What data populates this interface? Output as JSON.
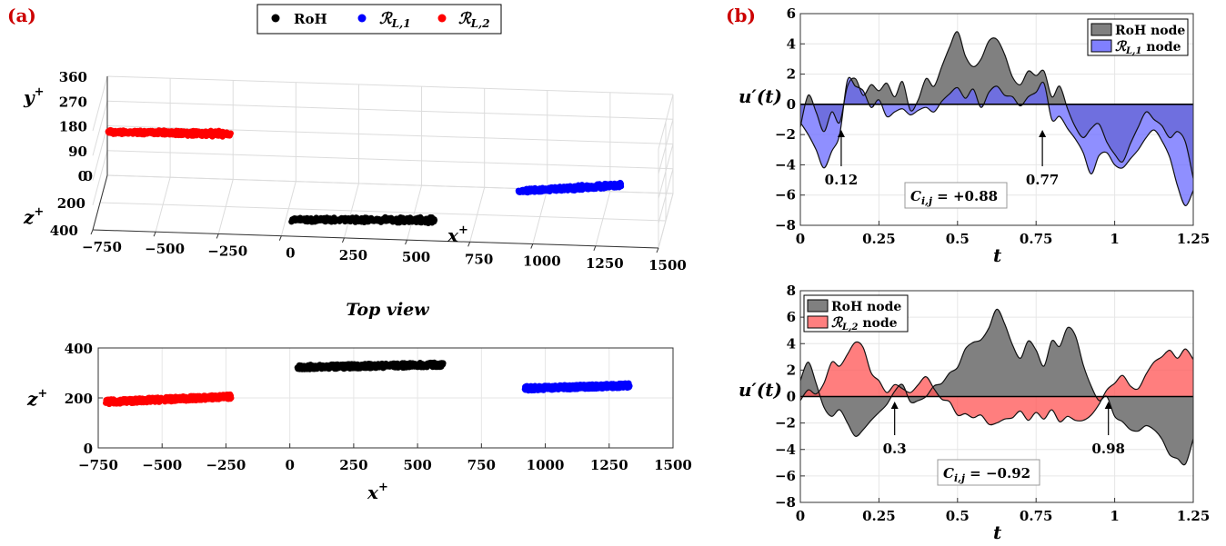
{
  "panel_labels": {
    "a": "(a)",
    "b": "(b)"
  },
  "colors": {
    "roh": "#000000",
    "rl1": "#0000ff",
    "rl2": "#ff0000",
    "roh_fill": "#808080",
    "rl1_fill": "#8080ff",
    "rl2_fill": "#ff7f7f",
    "overlap_blue": "#3535c0",
    "overlap_red": "#c04040"
  },
  "legend_top": {
    "items": [
      {
        "label": "RoH",
        "color": "#000000"
      },
      {
        "label": "ℛ",
        "sub": "L,1",
        "color": "#0000ff"
      },
      {
        "label": "ℛ",
        "sub": "L,2",
        "color": "#ff0000"
      }
    ]
  },
  "chart_data": [
    {
      "id": "3d-view",
      "type": "scatter",
      "title": "",
      "xlabel": "x",
      "xlabel_sup": "+",
      "ylabel": "y",
      "ylabel_sup": "+",
      "zlabel": "z",
      "zlabel_sup": "+",
      "x_ticks": [
        "−750",
        "−500",
        "−250",
        "0",
        "250",
        "500",
        "750",
        "1000",
        "1250",
        "1500"
      ],
      "y_ticks": [
        "0",
        "90",
        "180",
        "270",
        "360"
      ],
      "z_ticks": [
        "0",
        "200",
        "400"
      ],
      "xlim": [
        -750,
        1500
      ],
      "series": [
        {
          "name": "RoH",
          "color": "#000000",
          "x": [
            30,
            600
          ],
          "y": [
            20,
            40
          ],
          "z": [
            320,
            330
          ]
        },
        {
          "name": "ℛL,1",
          "color": "#0000ff",
          "x": [
            920,
            1330
          ],
          "y": [
            110,
            150
          ],
          "z": [
            240,
            250
          ]
        },
        {
          "name": "ℛL,2",
          "color": "#ff0000",
          "x": [
            -720,
            -230
          ],
          "y": [
            250,
            270
          ],
          "z": [
            185,
            210
          ]
        }
      ]
    },
    {
      "id": "top-view",
      "type": "scatter",
      "title": "Top view",
      "xlabel": "x",
      "xlabel_sup": "+",
      "ylabel": "z",
      "ylabel_sup": "+",
      "xlim": [
        -750,
        1500
      ],
      "ylim": [
        0,
        400
      ],
      "x_ticks": [
        "−750",
        "−500",
        "−250",
        "0",
        "250",
        "500",
        "750",
        "1000",
        "1250",
        "1500"
      ],
      "x_tick_values": [
        -750,
        -500,
        -250,
        0,
        250,
        500,
        750,
        1000,
        1250,
        1500
      ],
      "y_ticks": [
        "0",
        "200",
        "400"
      ],
      "y_tick_values": [
        0,
        200,
        400
      ],
      "series": [
        {
          "name": "RoH",
          "color": "#000000",
          "x": [
            30,
            600
          ],
          "z": [
            323,
            333
          ]
        },
        {
          "name": "ℛL,1",
          "color": "#0000ff",
          "x": [
            920,
            1330
          ],
          "z": [
            238,
            250
          ]
        },
        {
          "name": "ℛL,2",
          "color": "#ff0000",
          "x": [
            -720,
            -230
          ],
          "z": [
            184,
            205
          ]
        }
      ]
    },
    {
      "id": "signal-rl1",
      "type": "area",
      "xlabel": "t",
      "ylabel": "u′(t)",
      "xlim": [
        0,
        1.25
      ],
      "ylim": [
        -8,
        6
      ],
      "x_ticks": [
        "0",
        "0.25",
        "0.5",
        "0.75",
        "1",
        "1.25"
      ],
      "x_tick_values": [
        0,
        0.25,
        0.5,
        0.75,
        1,
        1.25
      ],
      "y_ticks": [
        "−8",
        "−6",
        "−4",
        "−2",
        "0",
        "2",
        "4",
        "6"
      ],
      "y_tick_values": [
        -8,
        -6,
        -4,
        -2,
        0,
        2,
        4,
        6
      ],
      "legend": [
        {
          "label": "RoH node",
          "color": "#808080"
        },
        {
          "label": "ℛ",
          "sub": "L,1",
          "suffix": " node",
          "color": "#8080ff"
        }
      ],
      "annotations": [
        {
          "text": "0.12",
          "x": 0.13
        },
        {
          "text": "0.77",
          "x": 0.77
        }
      ],
      "corr_text": {
        "main": "C",
        "sub": "i,j",
        "value": " = +0.88"
      },
      "x": [
        0,
        0.025,
        0.05,
        0.075,
        0.1,
        0.125,
        0.15,
        0.175,
        0.2,
        0.225,
        0.25,
        0.275,
        0.3,
        0.325,
        0.35,
        0.375,
        0.4,
        0.425,
        0.45,
        0.475,
        0.5,
        0.525,
        0.55,
        0.575,
        0.6,
        0.625,
        0.65,
        0.675,
        0.7,
        0.725,
        0.75,
        0.775,
        0.8,
        0.825,
        0.85,
        0.875,
        0.9,
        0.925,
        0.95,
        0.975,
        1,
        1.025,
        1.05,
        1.075,
        1.1,
        1.125,
        1.15,
        1.175,
        1.2,
        1.225,
        1.25
      ],
      "series": [
        {
          "name": "RoH node",
          "values": [
            -1.5,
            0.6,
            -0.5,
            -1.8,
            -0.5,
            -1.2,
            1.2,
            1.7,
            0.6,
            1.3,
            0.9,
            1.4,
            0.5,
            1.5,
            -0.4,
            0.3,
            1.7,
            1.2,
            2.5,
            3.8,
            4.8,
            3.2,
            2.5,
            3.0,
            4.2,
            4.3,
            3.3,
            1.8,
            1.3,
            2.2,
            1.9,
            2.2,
            0.5,
            1.2,
            -0.3,
            -1.5,
            -2.2,
            -1.6,
            -1.3,
            -2.5,
            -3.3,
            -3.8,
            -2.6,
            -1.5,
            -0.5,
            -1.0,
            -1.4,
            -2.2,
            -1.8,
            -2.5,
            -4.9
          ]
        },
        {
          "name": "ℛL,1 node",
          "values": [
            -1.2,
            -2.0,
            -3.0,
            -4.2,
            -3.1,
            -2.0,
            1.6,
            1.2,
            0.9,
            -0.2,
            0.3,
            -0.8,
            -0.5,
            -0.3,
            -0.7,
            -0.4,
            -0.2,
            -0.5,
            0.2,
            0.7,
            1.1,
            0.4,
            1.0,
            -0.2,
            0.8,
            1.2,
            0.6,
            0.5,
            -0.1,
            0.5,
            0.8,
            1.4,
            -1.0,
            -0.8,
            -1.6,
            -2.3,
            -3.2,
            -4.6,
            -3.4,
            -3.2,
            -4.0,
            -4.2,
            -3.6,
            -3.0,
            -2.2,
            -1.7,
            -2.4,
            -3.5,
            -5.4,
            -6.7,
            -5.7
          ]
        }
      ]
    },
    {
      "id": "signal-rl2",
      "type": "area",
      "xlabel": "t",
      "ylabel": "u′(t)",
      "xlim": [
        0,
        1.25
      ],
      "ylim": [
        -8,
        8
      ],
      "x_ticks": [
        "0",
        "0.25",
        "0.5",
        "0.75",
        "1",
        "1.25"
      ],
      "x_tick_values": [
        0,
        0.25,
        0.5,
        0.75,
        1,
        1.25
      ],
      "y_ticks": [
        "−8",
        "−6",
        "−4",
        "−2",
        "0",
        "2",
        "4",
        "6",
        "8"
      ],
      "y_tick_values": [
        -8,
        -6,
        -4,
        -2,
        0,
        2,
        4,
        6,
        8
      ],
      "legend": [
        {
          "label": "RoH node",
          "color": "#808080"
        },
        {
          "label": "ℛ",
          "sub": "L,2",
          "suffix": " node",
          "color": "#ff7f7f"
        }
      ],
      "annotations": [
        {
          "text": "0.3",
          "x": 0.3
        },
        {
          "text": "0.98",
          "x": 0.98
        }
      ],
      "corr_text": {
        "main": "C",
        "sub": "i,j",
        "value": " = −0.92"
      },
      "x": [
        0,
        0.025,
        0.05,
        0.075,
        0.1,
        0.125,
        0.15,
        0.175,
        0.2,
        0.225,
        0.25,
        0.275,
        0.3,
        0.325,
        0.35,
        0.375,
        0.4,
        0.425,
        0.45,
        0.475,
        0.5,
        0.525,
        0.55,
        0.575,
        0.6,
        0.625,
        0.65,
        0.675,
        0.7,
        0.725,
        0.75,
        0.775,
        0.8,
        0.825,
        0.85,
        0.875,
        0.9,
        0.925,
        0.95,
        0.975,
        1,
        1.025,
        1.05,
        1.075,
        1.1,
        1.125,
        1.15,
        1.175,
        1.2,
        1.225,
        1.25
      ],
      "series": [
        {
          "name": "RoH node",
          "values": [
            1.2,
            2.6,
            1.0,
            -0.8,
            -1.5,
            -1.0,
            -2.0,
            -3.0,
            -2.5,
            -1.8,
            -1.2,
            -0.6,
            0.4,
            0.9,
            -0.4,
            -0.3,
            0.0,
            0.8,
            1.0,
            1.8,
            2.2,
            3.6,
            4.1,
            4.3,
            5.2,
            6.6,
            5.5,
            3.9,
            2.9,
            4.2,
            3.5,
            2.3,
            4.2,
            3.8,
            5.2,
            4.6,
            2.4,
            0.8,
            -0.3,
            0.0,
            -1.5,
            -1.9,
            -2.5,
            -2.6,
            -2.2,
            -2.5,
            -3.2,
            -4.4,
            -4.7,
            -5.1,
            -3.2
          ]
        },
        {
          "name": "ℛL,2 node",
          "values": [
            -0.3,
            0.5,
            0.2,
            1.0,
            2.6,
            2.3,
            3.2,
            4.1,
            3.7,
            1.8,
            1.2,
            0.3,
            0.9,
            0.6,
            0.3,
            0.9,
            1.5,
            0.6,
            -0.2,
            -0.4,
            -1.4,
            -1.3,
            -1.6,
            -1.4,
            -2.1,
            -2.0,
            -1.7,
            -1.6,
            -1.1,
            -1.8,
            -1.2,
            -1.7,
            -1.0,
            -1.9,
            -1.5,
            -1.8,
            -1.8,
            -1.4,
            -0.6,
            0.5,
            1.0,
            1.6,
            0.8,
            0.6,
            1.7,
            2.6,
            3.0,
            3.5,
            2.9,
            3.6,
            2.8
          ]
        }
      ]
    }
  ]
}
